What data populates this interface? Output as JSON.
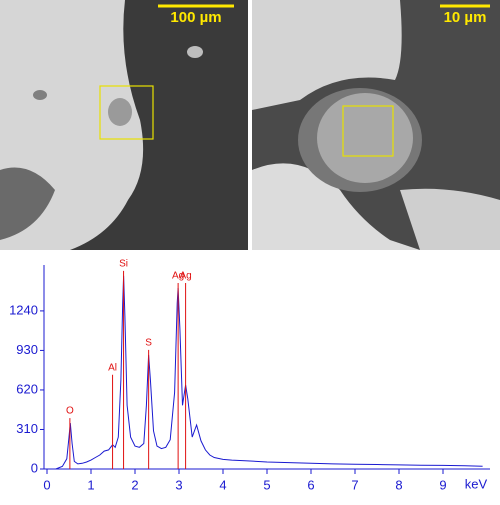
{
  "images": [
    {
      "scale_bar": "100 µm"
    },
    {
      "scale_bar": "10 µm"
    }
  ],
  "chart_data": {
    "type": "line",
    "color": "#1a1ad0",
    "x_label": "keV",
    "x": [
      0.2,
      0.35,
      0.45,
      0.5,
      0.53,
      0.57,
      0.62,
      0.7,
      0.8,
      0.9,
      1.0,
      1.1,
      1.2,
      1.3,
      1.4,
      1.49,
      1.55,
      1.62,
      1.68,
      1.72,
      1.74,
      1.77,
      1.82,
      1.9,
      2.0,
      2.1,
      2.2,
      2.26,
      2.31,
      2.35,
      2.42,
      2.5,
      2.6,
      2.7,
      2.8,
      2.9,
      2.96,
      2.98,
      3.02,
      3.08,
      3.15,
      3.2,
      3.3,
      3.4,
      3.5,
      3.6,
      3.7,
      3.8,
      4.0,
      4.2,
      4.5,
      5.0,
      5.5,
      6.0,
      6.5,
      7.0,
      7.5,
      8.0,
      8.5,
      9.0,
      9.5,
      9.9
    ],
    "values": [
      0,
      20,
      80,
      250,
      360,
      200,
      60,
      40,
      45,
      55,
      70,
      90,
      110,
      140,
      150,
      190,
      170,
      250,
      700,
      1300,
      1515,
      1200,
      500,
      250,
      180,
      170,
      200,
      500,
      895,
      700,
      300,
      180,
      160,
      170,
      230,
      600,
      1300,
      1420,
      1100,
      500,
      660,
      550,
      250,
      345,
      220,
      150,
      110,
      90,
      75,
      70,
      65,
      55,
      50,
      45,
      40,
      38,
      35,
      32,
      30,
      28,
      25,
      22
    ],
    "annotations": [
      {
        "text": "O",
        "x": 0.52
      },
      {
        "text": "Al",
        "x": 1.49
      },
      {
        "text": "Si",
        "x": 1.74
      },
      {
        "text": "S",
        "x": 2.31
      },
      {
        "text": "Ag",
        "x": 2.98
      },
      {
        "text": "Ag",
        "x": 3.15
      }
    ],
    "annotation_color": "#e01010",
    "xlim": [
      0,
      10
    ],
    "xticks": [
      0,
      1,
      2,
      3,
      4,
      5,
      6,
      7,
      8,
      9
    ],
    "ylim": [
      0,
      1600
    ],
    "yticks": [
      0,
      310,
      620,
      930,
      1240
    ]
  }
}
